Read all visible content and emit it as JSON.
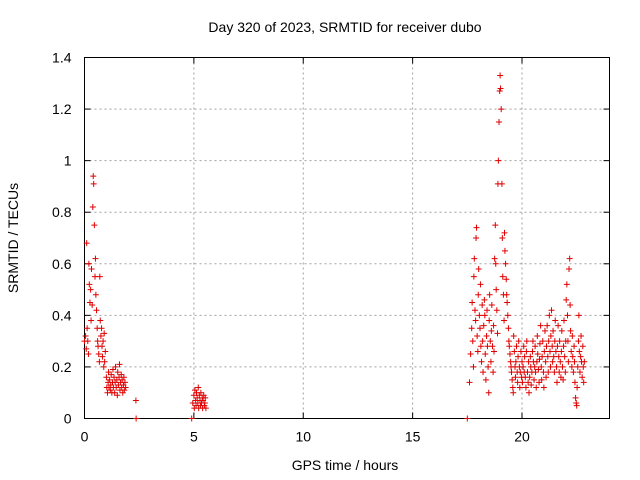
{
  "chart_data": {
    "type": "scatter",
    "title": "Day 320 of 2023, SRMTID for receiver dubo",
    "xlabel": "GPS time / hours",
    "ylabel": "SRMTID / TECUs",
    "xlim": [
      0,
      24
    ],
    "ylim": [
      0,
      1.4
    ],
    "xticks": [
      "0",
      "5",
      "10",
      "15",
      "20"
    ],
    "yticks": [
      "0",
      "0.2",
      "0.4",
      "0.6",
      "0.8",
      "1",
      "1.2",
      "1.4"
    ],
    "grid": true,
    "marker": "+",
    "series": [
      {
        "name": "SRMTID",
        "color": "#e00000",
        "points": [
          [
            0.0,
            0.3
          ],
          [
            0.05,
            0.32
          ],
          [
            0.08,
            0.27
          ],
          [
            0.1,
            0.68
          ],
          [
            0.12,
            0.35
          ],
          [
            0.15,
            0.3
          ],
          [
            0.18,
            0.25
          ],
          [
            0.2,
            0.6
          ],
          [
            0.22,
            0.52
          ],
          [
            0.25,
            0.45
          ],
          [
            0.28,
            0.5
          ],
          [
            0.3,
            0.38
          ],
          [
            0.32,
            0.58
          ],
          [
            0.35,
            0.44
          ],
          [
            0.38,
            0.82
          ],
          [
            0.4,
            0.94
          ],
          [
            0.42,
            0.91
          ],
          [
            0.45,
            0.75
          ],
          [
            0.48,
            0.55
          ],
          [
            0.5,
            0.62
          ],
          [
            0.52,
            0.48
          ],
          [
            0.55,
            0.42
          ],
          [
            0.58,
            0.35
          ],
          [
            0.6,
            0.3
          ],
          [
            0.62,
            0.28
          ],
          [
            0.65,
            0.25
          ],
          [
            0.68,
            0.22
          ],
          [
            0.7,
            0.55
          ],
          [
            0.72,
            0.38
          ],
          [
            0.75,
            0.32
          ],
          [
            0.78,
            0.35
          ],
          [
            0.8,
            0.28
          ],
          [
            0.82,
            0.24
          ],
          [
            0.85,
            0.3
          ],
          [
            0.88,
            0.2
          ],
          [
            0.9,
            0.33
          ],
          [
            0.92,
            0.22
          ],
          [
            0.95,
            0.26
          ],
          [
            1.0,
            0.16
          ],
          [
            1.02,
            0.12
          ],
          [
            1.05,
            0.1
          ],
          [
            1.08,
            0.14
          ],
          [
            1.1,
            0.18
          ],
          [
            1.12,
            0.12
          ],
          [
            1.15,
            0.15
          ],
          [
            1.18,
            0.11
          ],
          [
            1.2,
            0.13
          ],
          [
            1.22,
            0.17
          ],
          [
            1.25,
            0.1
          ],
          [
            1.28,
            0.14
          ],
          [
            1.3,
            0.19
          ],
          [
            1.32,
            0.12
          ],
          [
            1.35,
            0.16
          ],
          [
            1.38,
            0.1
          ],
          [
            1.4,
            0.14
          ],
          [
            1.42,
            0.2
          ],
          [
            1.45,
            0.12
          ],
          [
            1.48,
            0.15
          ],
          [
            1.5,
            0.09
          ],
          [
            1.52,
            0.18
          ],
          [
            1.55,
            0.13
          ],
          [
            1.58,
            0.16
          ],
          [
            1.6,
            0.21
          ],
          [
            1.62,
            0.11
          ],
          [
            1.65,
            0.14
          ],
          [
            1.68,
            0.17
          ],
          [
            1.7,
            0.12
          ],
          [
            1.72,
            0.15
          ],
          [
            1.75,
            0.1
          ],
          [
            1.78,
            0.13
          ],
          [
            1.8,
            0.16
          ],
          [
            1.82,
            0.11
          ],
          [
            1.85,
            0.14
          ],
          [
            1.88,
            0.12
          ],
          [
            2.35,
            0.07
          ],
          [
            2.36,
            0.0
          ],
          [
            4.9,
            0.0
          ],
          [
            4.95,
            0.06
          ],
          [
            5.0,
            0.09
          ],
          [
            5.02,
            0.04
          ],
          [
            5.05,
            0.11
          ],
          [
            5.08,
            0.07
          ],
          [
            5.1,
            0.05
          ],
          [
            5.12,
            0.1
          ],
          [
            5.15,
            0.08
          ],
          [
            5.18,
            0.06
          ],
          [
            5.2,
            0.12
          ],
          [
            5.22,
            0.04
          ],
          [
            5.25,
            0.09
          ],
          [
            5.28,
            0.07
          ],
          [
            5.3,
            0.05
          ],
          [
            5.32,
            0.1
          ],
          [
            5.35,
            0.06
          ],
          [
            5.38,
            0.08
          ],
          [
            5.4,
            0.04
          ],
          [
            5.42,
            0.07
          ],
          [
            5.45,
            0.09
          ],
          [
            5.48,
            0.05
          ],
          [
            5.5,
            0.06
          ],
          [
            5.52,
            0.08
          ],
          [
            5.55,
            0.04
          ],
          [
            17.5,
            0.0
          ],
          [
            17.6,
            0.14
          ],
          [
            17.65,
            0.25
          ],
          [
            17.7,
            0.35
          ],
          [
            17.72,
            0.45
          ],
          [
            17.75,
            0.3
          ],
          [
            17.78,
            0.2
          ],
          [
            17.8,
            0.55
          ],
          [
            17.82,
            0.62
          ],
          [
            17.85,
            0.42
          ],
          [
            17.88,
            0.38
          ],
          [
            17.9,
            0.7
          ],
          [
            17.92,
            0.74
          ],
          [
            17.95,
            0.32
          ],
          [
            17.98,
            0.26
          ],
          [
            18.0,
            0.48
          ],
          [
            18.02,
            0.58
          ],
          [
            18.05,
            0.4
          ],
          [
            18.08,
            0.35
          ],
          [
            18.1,
            0.52
          ],
          [
            18.12,
            0.28
          ],
          [
            18.15,
            0.22
          ],
          [
            18.18,
            0.44
          ],
          [
            18.2,
            0.3
          ],
          [
            18.22,
            0.18
          ],
          [
            18.25,
            0.36
          ],
          [
            18.28,
            0.46
          ],
          [
            18.3,
            0.4
          ],
          [
            18.32,
            0.25
          ],
          [
            18.35,
            0.15
          ],
          [
            18.38,
            0.32
          ],
          [
            18.4,
            0.42
          ],
          [
            18.42,
            0.28
          ],
          [
            18.45,
            0.2
          ],
          [
            18.48,
            0.1
          ],
          [
            18.5,
            0.38
          ],
          [
            18.52,
            0.48
          ],
          [
            18.55,
            0.3
          ],
          [
            18.58,
            0.22
          ],
          [
            18.6,
            0.34
          ],
          [
            18.62,
            0.44
          ],
          [
            18.65,
            0.28
          ],
          [
            18.68,
            0.18
          ],
          [
            18.7,
            0.36
          ],
          [
            18.72,
            0.26
          ],
          [
            18.75,
            0.62
          ],
          [
            18.78,
            0.75
          ],
          [
            18.8,
            0.6
          ],
          [
            18.82,
            0.5
          ],
          [
            18.85,
            0.42
          ],
          [
            18.88,
            0.33
          ],
          [
            18.9,
            0.91
          ],
          [
            18.92,
            1.0
          ],
          [
            18.95,
            1.15
          ],
          [
            18.98,
            1.27
          ],
          [
            19.0,
            1.33
          ],
          [
            19.02,
            1.28
          ],
          [
            19.05,
            1.2
          ],
          [
            19.08,
            0.91
          ],
          [
            19.1,
            0.7
          ],
          [
            19.12,
            0.55
          ],
          [
            19.15,
            0.48
          ],
          [
            19.18,
            0.38
          ],
          [
            19.2,
            0.72
          ],
          [
            19.22,
            0.65
          ],
          [
            19.25,
            0.6
          ],
          [
            19.28,
            0.54
          ],
          [
            19.3,
            0.48
          ],
          [
            19.32,
            0.45
          ],
          [
            19.35,
            0.4
          ],
          [
            19.38,
            0.35
          ],
          [
            19.4,
            0.3
          ],
          [
            19.42,
            0.28
          ],
          [
            19.45,
            0.25
          ],
          [
            19.48,
            0.22
          ],
          [
            19.5,
            0.2
          ],
          [
            19.52,
            0.18
          ],
          [
            19.55,
            0.15
          ],
          [
            19.58,
            0.12
          ],
          [
            19.6,
            0.1
          ],
          [
            19.62,
            0.32
          ],
          [
            19.65,
            0.26
          ],
          [
            19.68,
            0.2
          ],
          [
            19.7,
            0.16
          ],
          [
            19.72,
            0.22
          ],
          [
            19.75,
            0.28
          ],
          [
            19.78,
            0.18
          ],
          [
            19.8,
            0.14
          ],
          [
            19.82,
            0.24
          ],
          [
            19.85,
            0.3
          ],
          [
            19.88,
            0.2
          ],
          [
            19.9,
            0.12
          ],
          [
            19.92,
            0.18
          ],
          [
            19.95,
            0.26
          ],
          [
            19.98,
            0.16
          ],
          [
            20.0,
            0.22
          ],
          [
            20.02,
            0.14
          ],
          [
            20.05,
            0.2
          ],
          [
            20.08,
            0.28
          ],
          [
            20.1,
            0.18
          ],
          [
            20.12,
            0.24
          ],
          [
            20.15,
            0.16
          ],
          [
            20.18,
            0.12
          ],
          [
            20.2,
            0.26
          ],
          [
            20.22,
            0.3
          ],
          [
            20.25,
            0.18
          ],
          [
            20.28,
            0.14
          ],
          [
            20.3,
            0.22
          ],
          [
            20.32,
            0.1
          ],
          [
            20.35,
            0.16
          ],
          [
            20.38,
            0.24
          ],
          [
            20.4,
            0.2
          ],
          [
            20.42,
            0.13
          ],
          [
            20.45,
            0.18
          ],
          [
            20.48,
            0.26
          ],
          [
            20.5,
            0.3
          ],
          [
            20.52,
            0.22
          ],
          [
            20.55,
            0.15
          ],
          [
            20.58,
            0.2
          ],
          [
            20.6,
            0.28
          ],
          [
            20.62,
            0.18
          ],
          [
            20.65,
            0.12
          ],
          [
            20.68,
            0.22
          ],
          [
            20.7,
            0.32
          ],
          [
            20.72,
            0.25
          ],
          [
            20.75,
            0.19
          ],
          [
            20.78,
            0.14
          ],
          [
            20.8,
            0.23
          ],
          [
            20.82,
            0.29
          ],
          [
            20.85,
            0.36
          ],
          [
            20.88,
            0.2
          ],
          [
            20.9,
            0.15
          ],
          [
            20.92,
            0.24
          ],
          [
            20.95,
            0.3
          ],
          [
            20.98,
            0.18
          ],
          [
            21.0,
            0.12
          ],
          [
            21.02,
            0.26
          ],
          [
            21.05,
            0.34
          ],
          [
            21.08,
            0.22
          ],
          [
            21.1,
            0.16
          ],
          [
            21.12,
            0.28
          ],
          [
            21.15,
            0.36
          ],
          [
            21.18,
            0.24
          ],
          [
            21.2,
            0.18
          ],
          [
            21.22,
            0.3
          ],
          [
            21.25,
            0.4
          ],
          [
            21.28,
            0.26
          ],
          [
            21.3,
            0.2
          ],
          [
            21.32,
            0.32
          ],
          [
            21.35,
            0.42
          ],
          [
            21.38,
            0.28
          ],
          [
            21.4,
            0.22
          ],
          [
            21.42,
            0.34
          ],
          [
            21.45,
            0.24
          ],
          [
            21.48,
            0.18
          ],
          [
            21.5,
            0.3
          ],
          [
            21.52,
            0.38
          ],
          [
            21.55,
            0.26
          ],
          [
            21.58,
            0.2
          ],
          [
            21.6,
            0.14
          ],
          [
            21.62,
            0.28
          ],
          [
            21.65,
            0.36
          ],
          [
            21.68,
            0.24
          ],
          [
            21.7,
            0.18
          ],
          [
            21.72,
            0.3
          ],
          [
            21.75,
            0.22
          ],
          [
            21.78,
            0.16
          ],
          [
            21.8,
            0.26
          ],
          [
            21.82,
            0.34
          ],
          [
            21.85,
            0.2
          ],
          [
            21.88,
            0.15
          ],
          [
            21.9,
            0.28
          ],
          [
            21.92,
            0.38
          ],
          [
            21.95,
            0.24
          ],
          [
            21.98,
            0.18
          ],
          [
            22.0,
            0.3
          ],
          [
            22.02,
            0.46
          ],
          [
            22.05,
            0.52
          ],
          [
            22.08,
            0.4
          ],
          [
            22.1,
            0.3
          ],
          [
            22.12,
            0.22
          ],
          [
            22.15,
            0.58
          ],
          [
            22.18,
            0.62
          ],
          [
            22.2,
            0.44
          ],
          [
            22.22,
            0.34
          ],
          [
            22.25,
            0.26
          ],
          [
            22.28,
            0.2
          ],
          [
            22.3,
            0.32
          ],
          [
            22.32,
            0.24
          ],
          [
            22.35,
            0.18
          ],
          [
            22.38,
            0.28
          ],
          [
            22.4,
            0.22
          ],
          [
            22.42,
            0.14
          ],
          [
            22.45,
            0.08
          ],
          [
            22.48,
            0.06
          ],
          [
            22.5,
            0.05
          ],
          [
            22.52,
            0.12
          ],
          [
            22.55,
            0.2
          ],
          [
            22.58,
            0.3
          ],
          [
            22.6,
            0.4
          ],
          [
            22.62,
            0.26
          ],
          [
            22.65,
            0.18
          ],
          [
            22.68,
            0.24
          ],
          [
            22.7,
            0.32
          ],
          [
            22.72,
            0.22
          ],
          [
            22.75,
            0.16
          ],
          [
            22.78,
            0.28
          ],
          [
            22.8,
            0.2
          ],
          [
            22.82,
            0.14
          ],
          [
            22.85,
            0.22
          ]
        ]
      }
    ]
  }
}
